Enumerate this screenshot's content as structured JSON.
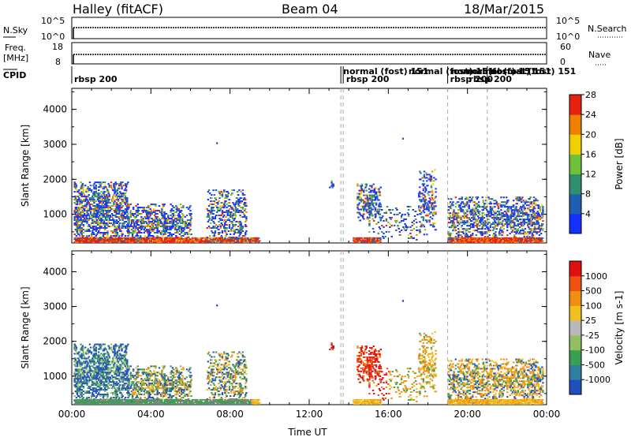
{
  "header": {
    "station": "Halley (fitACF)",
    "beam": "Beam 04",
    "date": "18/Mar/2015"
  },
  "status_panels": {
    "nsky_label": "N.Sky",
    "nsky_ticks": [
      "10^5",
      "10^0"
    ],
    "nsearch_label": "N.Search",
    "nsearch_ticks": [
      "10^5",
      "10^0"
    ],
    "freq_label": "Freq.",
    "freq_unit": "[MHz]",
    "freq_ticks": [
      "18",
      "8"
    ],
    "nave_label": "Nave",
    "nave_ticks": [
      "60",
      "0"
    ],
    "cpid_label": "CPID",
    "cpid_segments": [
      {
        "label": "rbsp 200",
        "row": 0,
        "x": 0.0
      },
      {
        "label": "normal (fost) 151",
        "row": -1,
        "x": 13.6
      },
      {
        "label": "rbsp 200",
        "row": 0,
        "x": 13.75
      },
      {
        "label": "normal (fost) 151",
        "row": -1,
        "x": 16.9
      },
      {
        "label": "normal (fost) 151",
        "row": -1,
        "x": 19.05
      },
      {
        "label": "rbsp 200",
        "row": 0,
        "x": 19.0
      },
      {
        "label": "normal (fost) 151",
        "row": -1,
        "x": 19.8
      },
      {
        "label": "rbsp 200",
        "row": 0,
        "x": 19.95
      },
      {
        "label": "normal (fost) 151",
        "row": -1,
        "x": 21.05
      }
    ],
    "cpid_changes": [
      13.6,
      13.72,
      19.0,
      21.0
    ]
  },
  "chart_data": [
    {
      "type": "heatmap",
      "name": "power",
      "xlabel": "",
      "ylabel": "Slant Range [km]",
      "xlim": [
        0,
        24
      ],
      "ylim": [
        180,
        4600
      ],
      "yticks": [
        1000,
        2000,
        3000,
        4000
      ],
      "colorbar": {
        "label": "Power [dB]",
        "ticks": [
          "4",
          "8",
          "12",
          "16",
          "20",
          "24",
          "28"
        ],
        "colors": [
          "#1430ff",
          "#1f5fb0",
          "#2f8f6f",
          "#6fc03a",
          "#f0d000",
          "#f08000",
          "#e82010"
        ]
      }
    },
    {
      "type": "heatmap",
      "name": "velocity",
      "xlabel": "Time UT",
      "ylabel": "Slant Range [km]",
      "xlim": [
        0,
        24
      ],
      "ylim": [
        180,
        4600
      ],
      "xticks": [
        "00:00",
        "04:00",
        "08:00",
        "12:00",
        "16:00",
        "20:00",
        "00:00"
      ],
      "yticks": [
        1000,
        2000,
        3000,
        4000
      ],
      "colorbar": {
        "label": "Velocity [m s-1]",
        "ticks": [
          "1000",
          "500",
          "100",
          "25",
          "-25",
          "-100",
          "-500",
          "-1000"
        ],
        "colors": [
          "#2050c0",
          "#2f7fa0",
          "#3a9f50",
          "#90c060",
          "#b8b8b8",
          "#f0c020",
          "#f09010",
          "#f05010",
          "#e01010"
        ]
      },
      "ground_scatter_color": "#808080"
    }
  ]
}
